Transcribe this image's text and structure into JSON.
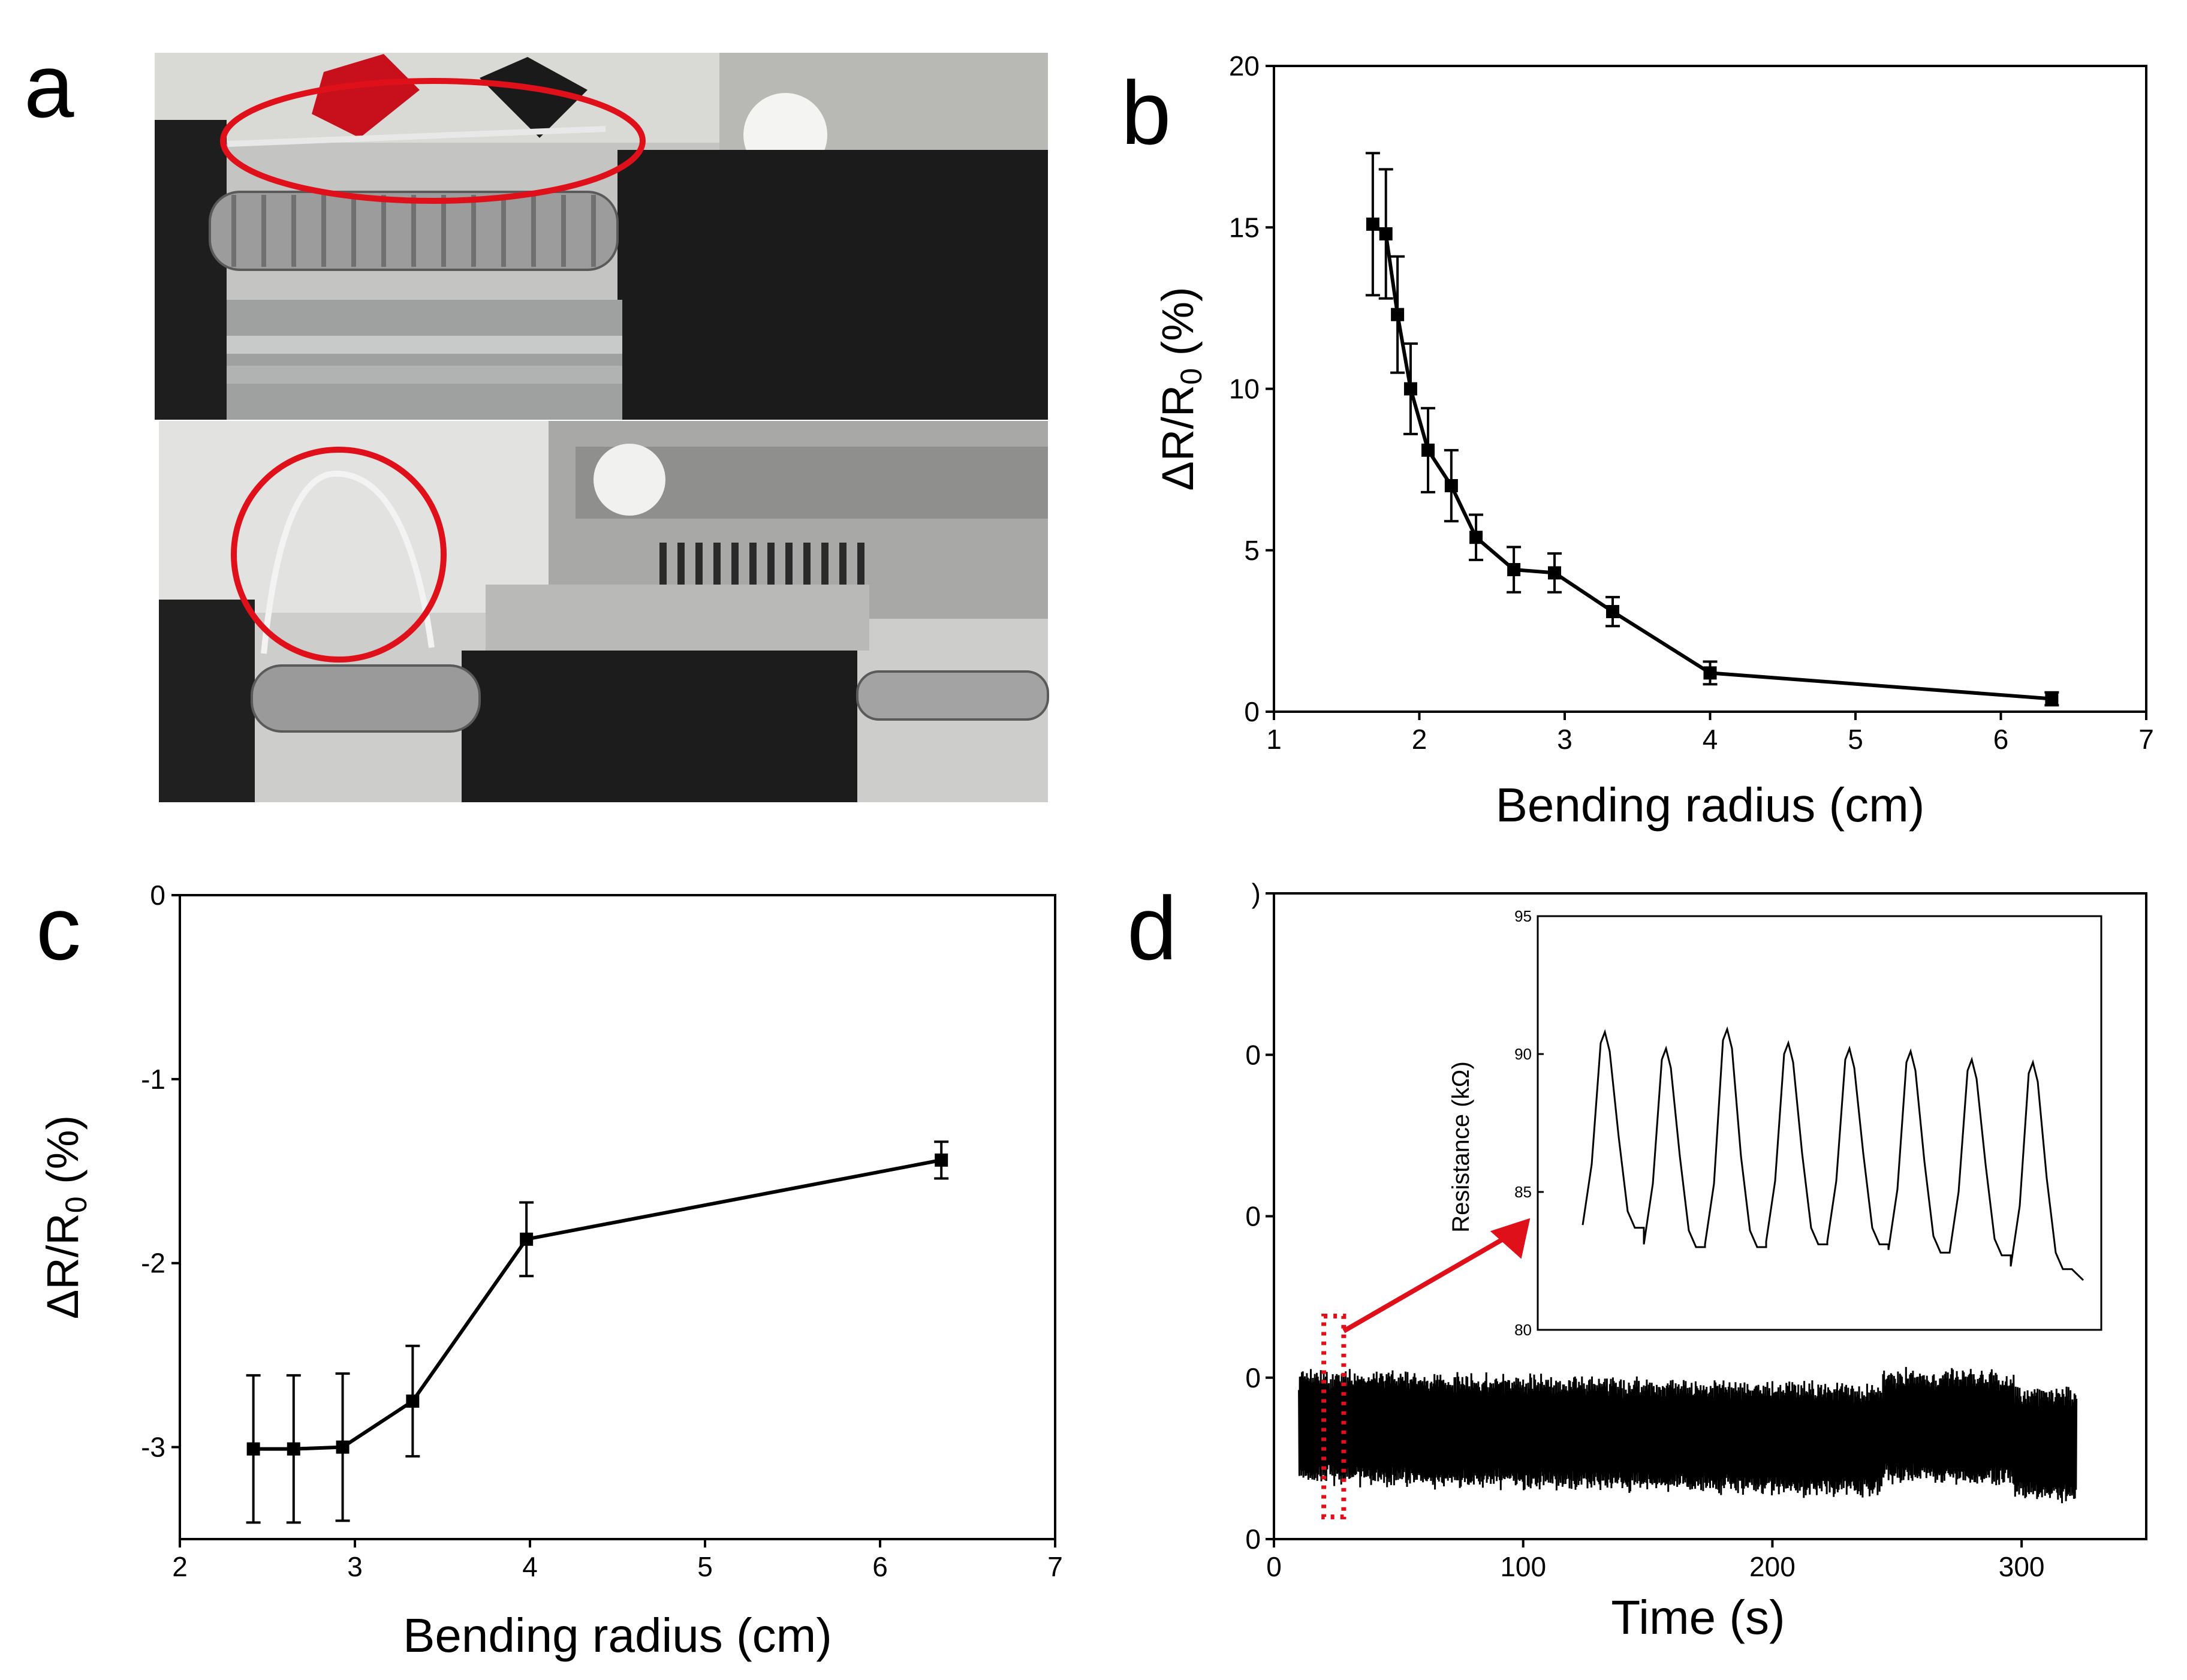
{
  "panels": {
    "a": "a",
    "b": "b",
    "c": "c",
    "d": "d"
  },
  "colors": {
    "line": "#000000",
    "highlight": "#e0101a",
    "photo_bg": "#c8c8c6"
  },
  "chart_data": [
    {
      "id": "b",
      "type": "line",
      "xlabel": "Bending radius (cm)",
      "ylabel_main": "ΔR/R",
      "ylabel_sub": "0",
      "ylabel_tail": " (%)",
      "xlim": [
        1,
        7
      ],
      "ylim": [
        0,
        20
      ],
      "xticks": [
        "1",
        "2",
        "3",
        "4",
        "5",
        "6",
        "7"
      ],
      "yticks": [
        "0",
        "5",
        "10",
        "15",
        "20"
      ],
      "x": [
        1.68,
        1.77,
        1.85,
        1.94,
        2.06,
        2.22,
        2.39,
        2.65,
        2.93,
        3.33,
        4.0,
        6.35
      ],
      "y": [
        15.1,
        14.8,
        12.3,
        10.0,
        8.1,
        7.0,
        5.4,
        4.4,
        4.3,
        3.1,
        1.2,
        0.4
      ],
      "err": [
        2.2,
        2.0,
        1.8,
        1.4,
        1.3,
        1.1,
        0.7,
        0.7,
        0.6,
        0.45,
        0.35,
        0.2
      ]
    },
    {
      "id": "c",
      "type": "line",
      "xlabel": "Bending radius (cm)",
      "ylabel_main": "ΔR/R",
      "ylabel_sub": "0",
      "ylabel_tail": " (%)",
      "xlim": [
        2,
        7
      ],
      "ylim": [
        -3.5,
        0
      ],
      "xticks": [
        "2",
        "3",
        "4",
        "5",
        "6",
        "7"
      ],
      "yticks": [
        "0",
        "-1",
        "-2",
        "-3"
      ],
      "x": [
        2.42,
        2.65,
        2.93,
        3.33,
        3.98,
        6.35
      ],
      "y": [
        -3.01,
        -3.01,
        -3.0,
        -2.75,
        -1.87,
        -1.44
      ],
      "err": [
        0.4,
        0.4,
        0.4,
        0.3,
        0.2,
        0.1
      ]
    },
    {
      "id": "d",
      "type": "line",
      "xlabel": "Time (s)",
      "xlim": [
        0,
        350
      ],
      "xticks": [
        "0",
        "100",
        "200",
        "300"
      ],
      "yticks": [
        ")",
        "0",
        "0",
        "0",
        "0"
      ],
      "inset": {
        "ylabel": "Resistance (kΩ)",
        "ylim": [
          80,
          95
        ],
        "yticks": [
          "95",
          "90",
          "85",
          "80"
        ],
        "peaks": [
          90.8,
          90.2,
          90.9,
          90.4,
          90.2,
          90.1,
          89.8,
          89.7
        ],
        "troughs": [
          83.5,
          82.8,
          82.8,
          82.9,
          82.9,
          82.6,
          82.5,
          82.0
        ]
      }
    }
  ]
}
